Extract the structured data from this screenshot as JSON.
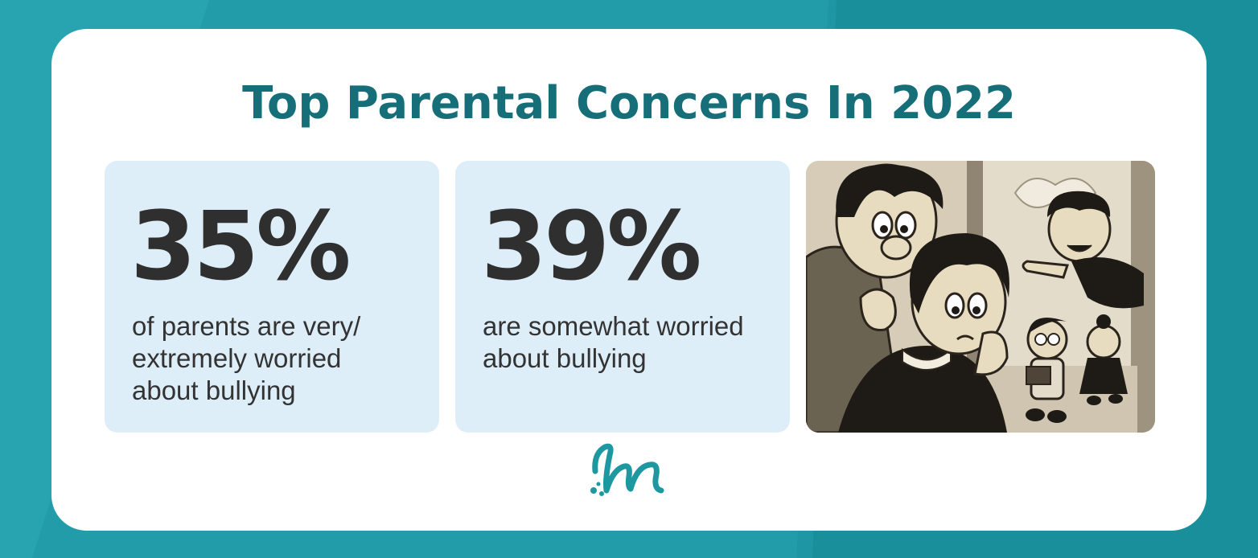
{
  "title": "Top Parental Concerns In 2022",
  "stats": [
    {
      "value": "35%",
      "description": "of parents are very/\nextremely worried\nabout bullying"
    },
    {
      "value": "39%",
      "description": "are somewhat worried\nabout bullying"
    }
  ],
  "colors": {
    "background": "#1f96a4",
    "card": "#ffffff",
    "title": "#156e78",
    "stat_box": "#deeef8",
    "stat_text": "#2f2f2f",
    "logo": "#1d98a0"
  },
  "icons": [
    "brand-logo-icon"
  ],
  "illustration": "vintage-cartoon-worried-parents-bullying-scene"
}
